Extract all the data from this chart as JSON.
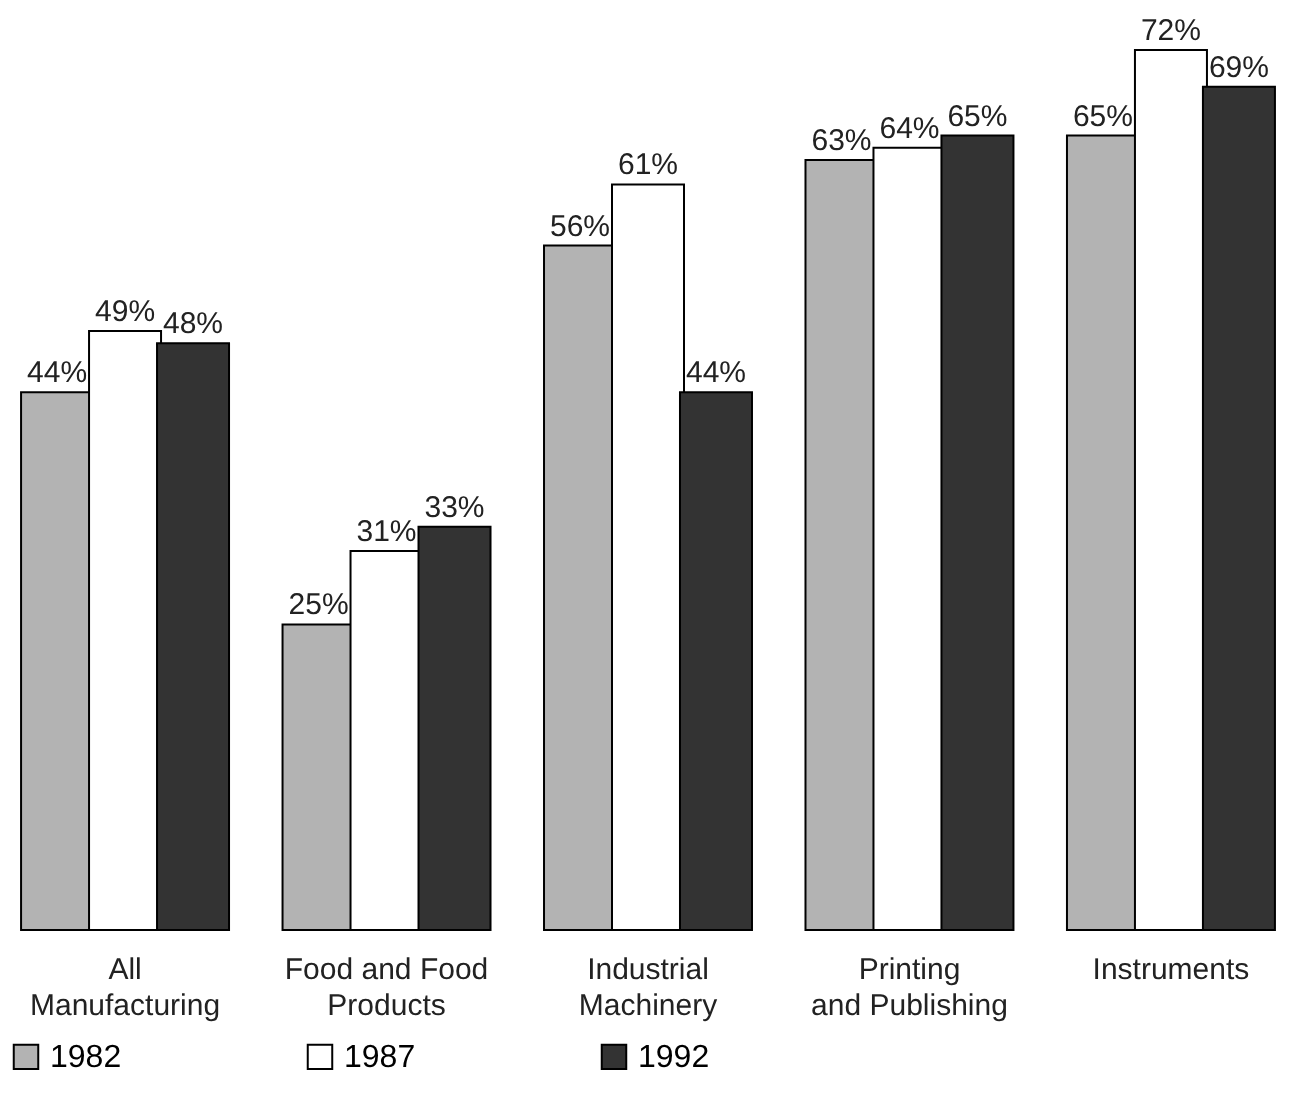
{
  "chart_data": {
    "type": "bar",
    "categories": [
      "All\nManufacturing",
      "Food and Food\nProducts",
      "Industrial\nMachinery",
      "Printing\nand Publishing",
      "Instruments"
    ],
    "series": [
      {
        "name": "1982",
        "color": "#b3b3b3",
        "values": [
          44,
          25,
          56,
          63,
          65
        ],
        "value_labels": [
          "44%",
          "25%",
          "56%",
          "63%",
          "65%"
        ]
      },
      {
        "name": "1987",
        "color": "#ffffff",
        "values": [
          49,
          31,
          61,
          64,
          72
        ],
        "value_labels": [
          "49%",
          "31%",
          "61%",
          "64%",
          "72%"
        ]
      },
      {
        "name": "1992",
        "color": "#333333",
        "values": [
          48,
          33,
          44,
          65,
          69
        ],
        "value_labels": [
          "48%",
          "33%",
          "44%",
          "65%",
          "69%"
        ]
      }
    ],
    "legend": "bottom",
    "grid": false
  }
}
